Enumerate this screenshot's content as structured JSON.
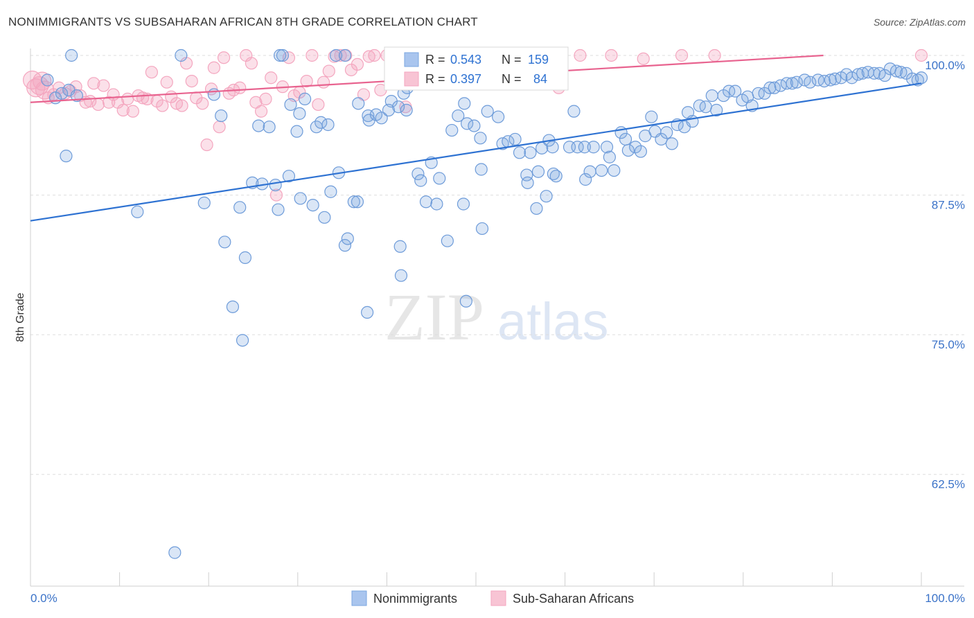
{
  "title": "NONIMMIGRANTS VS SUBSAHARAN AFRICAN 8TH GRADE CORRELATION CHART",
  "source": "Source: ZipAtlas.com",
  "watermark": {
    "zip": "ZIP",
    "atlas": "atlas"
  },
  "legend_box": {
    "rows": [
      {
        "r_label": "R =",
        "r_value": "0.543",
        "n_label": "N =",
        "n_value": "159"
      },
      {
        "r_label": "R =",
        "r_value": "0.397",
        "n_label": "N =",
        "n_value": "84"
      }
    ]
  },
  "chart_data": {
    "type": "scatter",
    "title": "NONIMMIGRANTS VS SUBSAHARAN AFRICAN 8TH GRADE CORRELATION CHART",
    "xlabel": "",
    "ylabel": "8th Grade",
    "xlim": [
      0,
      100
    ],
    "ylim": [
      52.5,
      101.3
    ],
    "x_tick_labels": [
      "0.0%",
      "100.0%"
    ],
    "y_ticks": [
      62.5,
      75.0,
      87.5,
      100.0
    ],
    "y_tick_labels": [
      "62.5%",
      "75.0%",
      "87.5%",
      "100.0%"
    ],
    "grid": true,
    "legend_position": "bottom",
    "series": [
      {
        "name": "Nonimmigrants",
        "color": "#7ba7e0",
        "line_color": "#2e72d2",
        "R": 0.543,
        "N": 159,
        "trend": [
          [
            0,
            85.2
          ],
          [
            100,
            97.5
          ]
        ],
        "points": [
          [
            4.6,
            100
          ],
          [
            16.9,
            100
          ],
          [
            28.0,
            100
          ],
          [
            28.3,
            100
          ],
          [
            34.3,
            100
          ],
          [
            35.3,
            100
          ],
          [
            48.0,
            98.0
          ],
          [
            12.0,
            86.0
          ],
          [
            19.5,
            86.8
          ],
          [
            21.4,
            94.6
          ],
          [
            21.8,
            83.3
          ],
          [
            22.7,
            77.5
          ],
          [
            23.5,
            86.4
          ],
          [
            24.1,
            81.9
          ],
          [
            24.9,
            88.6
          ],
          [
            25.6,
            93.7
          ],
          [
            26.0,
            88.5
          ],
          [
            26.8,
            93.6
          ],
          [
            27.5,
            88.4
          ],
          [
            29.2,
            95.6
          ],
          [
            29.0,
            89.2
          ],
          [
            30.2,
            94.8
          ],
          [
            30.8,
            96.1
          ],
          [
            30.3,
            87.2
          ],
          [
            31.7,
            86.6
          ],
          [
            32.1,
            93.6
          ],
          [
            32.6,
            94.0
          ],
          [
            33.4,
            93.8
          ],
          [
            33.7,
            87.8
          ],
          [
            34.6,
            89.5
          ],
          [
            35.3,
            83.0
          ],
          [
            36.8,
            95.7
          ],
          [
            36.3,
            86.9
          ],
          [
            36.7,
            86.9
          ],
          [
            37.9,
            94.6
          ],
          [
            38.0,
            94.2
          ],
          [
            38.8,
            94.7
          ],
          [
            39.4,
            94.4
          ],
          [
            40.2,
            95.1
          ],
          [
            40.5,
            95.9
          ],
          [
            41.3,
            95.4
          ],
          [
            41.9,
            96.6
          ],
          [
            42.2,
            95.1
          ],
          [
            41.5,
            82.9
          ],
          [
            42.3,
            97.1
          ],
          [
            43.5,
            89.4
          ],
          [
            43.8,
            88.8
          ],
          [
            44.4,
            86.9
          ],
          [
            45.0,
            90.4
          ],
          [
            45.6,
            86.7
          ],
          [
            45.9,
            89.0
          ],
          [
            46.8,
            83.4
          ],
          [
            47.3,
            93.3
          ],
          [
            48.0,
            94.6
          ],
          [
            48.7,
            95.7
          ],
          [
            49.0,
            93.9
          ],
          [
            48.6,
            86.7
          ],
          [
            49.8,
            93.7
          ],
          [
            50.5,
            92.6
          ],
          [
            50.6,
            89.8
          ],
          [
            50.7,
            84.5
          ],
          [
            51.3,
            95.0
          ],
          [
            52.5,
            94.5
          ],
          [
            53.0,
            92.1
          ],
          [
            53.6,
            92.3
          ],
          [
            54.4,
            92.5
          ],
          [
            54.9,
            91.3
          ],
          [
            55.7,
            89.3
          ],
          [
            55.8,
            88.6
          ],
          [
            56.1,
            91.3
          ],
          [
            57.0,
            89.6
          ],
          [
            56.8,
            86.3
          ],
          [
            57.4,
            91.7
          ],
          [
            58.2,
            92.4
          ],
          [
            57.9,
            87.4
          ],
          [
            58.6,
            91.8
          ],
          [
            58.7,
            89.4
          ],
          [
            59.0,
            89.2
          ],
          [
            60.5,
            91.8
          ],
          [
            61.0,
            95.0
          ],
          [
            61.4,
            91.8
          ],
          [
            62.2,
            91.8
          ],
          [
            62.3,
            88.9
          ],
          [
            62.8,
            89.6
          ],
          [
            63.2,
            91.8
          ],
          [
            64.1,
            89.7
          ],
          [
            64.7,
            91.8
          ],
          [
            65.0,
            90.9
          ],
          [
            65.5,
            89.7
          ],
          [
            66.3,
            93.1
          ],
          [
            66.8,
            92.5
          ],
          [
            67.1,
            91.5
          ],
          [
            67.9,
            91.8
          ],
          [
            68.5,
            91.4
          ],
          [
            69.0,
            92.8
          ],
          [
            69.7,
            94.5
          ],
          [
            70.1,
            93.2
          ],
          [
            70.8,
            92.5
          ],
          [
            71.4,
            93.1
          ],
          [
            72.0,
            92.1
          ],
          [
            72.6,
            93.8
          ],
          [
            73.4,
            93.6
          ],
          [
            73.8,
            94.9
          ],
          [
            74.3,
            94.1
          ],
          [
            75.1,
            95.5
          ],
          [
            75.8,
            95.4
          ],
          [
            76.5,
            96.4
          ],
          [
            77.0,
            95.1
          ],
          [
            77.8,
            96.4
          ],
          [
            78.4,
            96.8
          ],
          [
            79.1,
            96.8
          ],
          [
            79.9,
            96.0
          ],
          [
            80.5,
            96.3
          ],
          [
            81.0,
            95.5
          ],
          [
            81.7,
            96.6
          ],
          [
            82.4,
            96.6
          ],
          [
            83.0,
            97.1
          ],
          [
            83.5,
            97.1
          ],
          [
            84.2,
            97.3
          ],
          [
            84.9,
            97.5
          ],
          [
            85.5,
            97.5
          ],
          [
            86.0,
            97.6
          ],
          [
            86.9,
            97.8
          ],
          [
            87.5,
            97.6
          ],
          [
            88.4,
            97.8
          ],
          [
            89.1,
            97.7
          ],
          [
            89.8,
            97.8
          ],
          [
            90.3,
            97.9
          ],
          [
            91.0,
            98.0
          ],
          [
            91.6,
            98.3
          ],
          [
            92.2,
            98.0
          ],
          [
            92.9,
            98.3
          ],
          [
            93.4,
            98.4
          ],
          [
            94.0,
            98.5
          ],
          [
            94.7,
            98.4
          ],
          [
            95.3,
            98.4
          ],
          [
            95.9,
            98.2
          ],
          [
            96.5,
            98.8
          ],
          [
            97.2,
            98.6
          ],
          [
            97.7,
            98.5
          ],
          [
            98.3,
            98.4
          ],
          [
            99.0,
            97.9
          ],
          [
            99.6,
            97.8
          ],
          [
            100.0,
            98.0
          ],
          [
            1.9,
            97.8
          ],
          [
            2.8,
            96.2
          ],
          [
            3.5,
            96.6
          ],
          [
            4.3,
            96.9
          ],
          [
            5.2,
            96.4
          ],
          [
            27.8,
            86.2
          ],
          [
            29.9,
            93.2
          ],
          [
            33.0,
            85.5
          ],
          [
            35.6,
            83.6
          ],
          [
            48.9,
            78.0
          ],
          [
            4.0,
            91.0
          ],
          [
            23.8,
            74.5
          ],
          [
            20.6,
            96.5
          ],
          [
            16.2,
            55.5
          ],
          [
            37.8,
            77.0
          ],
          [
            41.6,
            80.3
          ]
        ]
      },
      {
        "name": "Sub-Saharan Africans",
        "color": "#f4a6bf",
        "line_color": "#e8638f",
        "R": 0.397,
        "N": 84,
        "trend": [
          [
            0,
            95.8
          ],
          [
            89,
            100.0
          ]
        ],
        "points": [
          [
            0.2,
            97.8
          ],
          [
            0.6,
            97.1
          ],
          [
            1.0,
            97.3
          ],
          [
            1.3,
            97.7
          ],
          [
            1.6,
            96.9
          ],
          [
            2.0,
            96.2
          ],
          [
            2.6,
            96.5
          ],
          [
            3.2,
            97.1
          ],
          [
            3.9,
            96.6
          ],
          [
            4.5,
            96.8
          ],
          [
            5.1,
            97.2
          ],
          [
            5.6,
            96.4
          ],
          [
            6.2,
            95.8
          ],
          [
            6.7,
            95.9
          ],
          [
            7.1,
            97.5
          ],
          [
            7.6,
            95.6
          ],
          [
            8.2,
            97.3
          ],
          [
            8.8,
            95.8
          ],
          [
            9.3,
            96.5
          ],
          [
            9.8,
            95.8
          ],
          [
            10.4,
            95.1
          ],
          [
            10.9,
            96.1
          ],
          [
            11.5,
            95.0
          ],
          [
            12.1,
            96.4
          ],
          [
            12.6,
            96.2
          ],
          [
            13.1,
            96.1
          ],
          [
            13.6,
            98.5
          ],
          [
            14.2,
            95.9
          ],
          [
            14.8,
            95.5
          ],
          [
            15.3,
            97.6
          ],
          [
            15.8,
            96.3
          ],
          [
            16.4,
            95.7
          ],
          [
            17.0,
            95.5
          ],
          [
            17.5,
            99.3
          ],
          [
            18.1,
            97.7
          ],
          [
            18.6,
            96.2
          ],
          [
            19.3,
            95.7
          ],
          [
            19.8,
            92.0
          ],
          [
            20.3,
            97.0
          ],
          [
            20.6,
            98.9
          ],
          [
            21.2,
            93.6
          ],
          [
            21.7,
            99.8
          ],
          [
            22.3,
            96.6
          ],
          [
            22.8,
            96.9
          ],
          [
            23.5,
            97.1
          ],
          [
            24.2,
            100
          ],
          [
            24.8,
            99.3
          ],
          [
            25.3,
            95.8
          ],
          [
            25.9,
            95.0
          ],
          [
            26.4,
            96.1
          ],
          [
            27.0,
            98.0
          ],
          [
            27.6,
            87.5
          ],
          [
            28.3,
            97.2
          ],
          [
            29.0,
            99.8
          ],
          [
            29.6,
            96.4
          ],
          [
            30.2,
            96.7
          ],
          [
            31.0,
            97.7
          ],
          [
            31.6,
            100
          ],
          [
            32.3,
            95.6
          ],
          [
            32.9,
            97.6
          ],
          [
            33.5,
            98.6
          ],
          [
            34.1,
            99.9
          ],
          [
            34.8,
            100
          ],
          [
            35.4,
            100
          ],
          [
            36.0,
            98.7
          ],
          [
            36.7,
            99.2
          ],
          [
            37.4,
            96.5
          ],
          [
            38.0,
            99.9
          ],
          [
            38.6,
            100
          ],
          [
            39.3,
            96.9
          ],
          [
            40.0,
            100
          ],
          [
            42.1,
            95.4
          ],
          [
            45.4,
            100
          ],
          [
            47.2,
            100
          ],
          [
            47.9,
            100
          ],
          [
            49.7,
            100
          ],
          [
            56.2,
            99.5
          ],
          [
            59.3,
            97.1
          ],
          [
            61.7,
            100
          ],
          [
            65.2,
            100
          ],
          [
            68.8,
            99.7
          ],
          [
            73.1,
            100
          ],
          [
            76.8,
            100
          ],
          [
            100.0,
            100
          ]
        ]
      }
    ]
  },
  "bottom_legend": [
    "Nonimmigrants",
    "Sub-Saharan Africans"
  ]
}
